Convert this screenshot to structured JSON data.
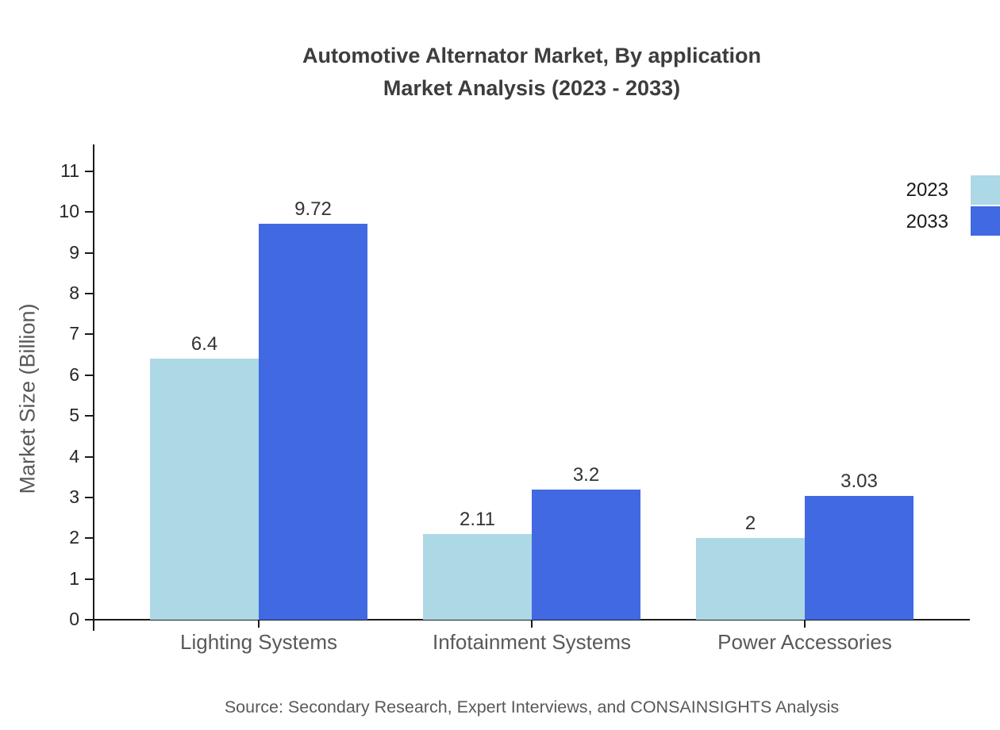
{
  "title": {
    "line1": "Automotive Alternator Market, By application",
    "line2": "Market Analysis (2023 - 2033)"
  },
  "chart_data": {
    "type": "bar",
    "categories": [
      "Lighting Systems",
      "Infotainment Systems",
      "Power Accessories"
    ],
    "series": [
      {
        "name": "2023",
        "color": "#ADD8E6",
        "values": [
          6.4,
          2.11,
          2
        ]
      },
      {
        "name": "2033",
        "color": "#4169E1",
        "values": [
          9.72,
          3.2,
          3.03
        ]
      }
    ],
    "title": "Automotive Alternator Market, By application Market Analysis (2023 - 2033)",
    "xlabel": "",
    "ylabel": "Market Size (Billion)",
    "yticks": [
      0,
      1,
      2,
      3,
      4,
      5,
      6,
      7,
      8,
      9,
      10,
      11
    ],
    "ylim": [
      0,
      11.66
    ],
    "grid": false,
    "legend_position": "top-right",
    "value_labels_shown": true
  },
  "footer": {
    "source": "Source: Secondary Research, Expert Interviews, and CONSAINSIGHTS Analysis"
  }
}
